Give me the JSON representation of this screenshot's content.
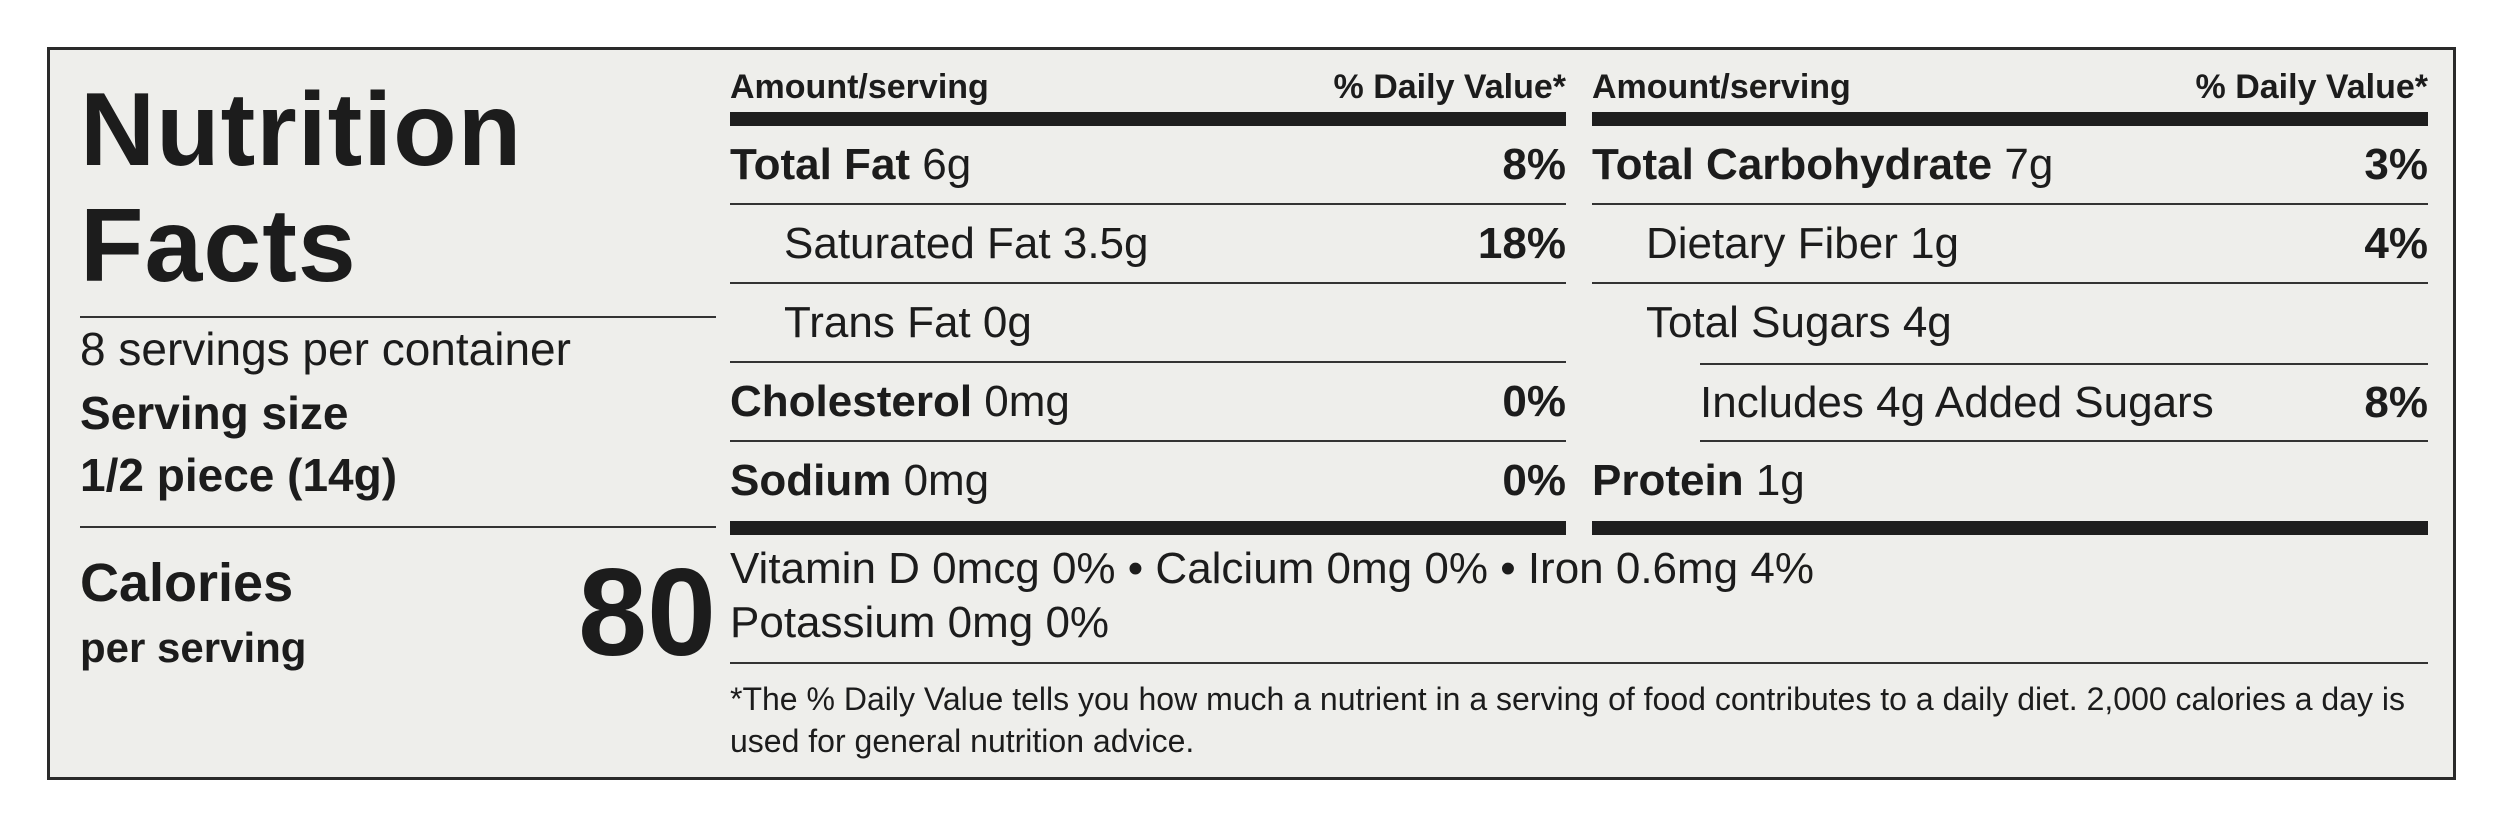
{
  "title_line1": "Nutrition",
  "title_line2": "Facts",
  "servings_per_container": "8 servings per container",
  "serving_size_label": "Serving size",
  "serving_size_value": "1/2 piece (14g)",
  "calories_label": "Calories",
  "calories_sublabel": "per serving",
  "calories_value": "80",
  "header_amount": "Amount/serving",
  "header_dv": "% Daily Value*",
  "left_rows": [
    {
      "name": "Total Fat",
      "amount": "6g",
      "dv": "8%"
    },
    {
      "name": "Saturated Fat",
      "amount": "3.5g",
      "dv": "18%"
    },
    {
      "name": "Trans Fat",
      "amount": "0g",
      "dv": ""
    },
    {
      "name": "Cholesterol",
      "amount": "0mg",
      "dv": "0%"
    },
    {
      "name": "Sodium",
      "amount": "0mg",
      "dv": "0%"
    }
  ],
  "right_rows": [
    {
      "name": "Total Carbohydrate",
      "amount": "7g",
      "dv": "3%"
    },
    {
      "name": "Dietary Fiber",
      "amount": "1g",
      "dv": "4%"
    },
    {
      "name": "Total Sugars",
      "amount": "4g",
      "dv": ""
    },
    {
      "name": "Includes 4g Added Sugars",
      "amount": "",
      "dv": "8%"
    },
    {
      "name": "Protein",
      "amount": "1g",
      "dv": ""
    }
  ],
  "vitamins_line1": "Vitamin D 0mcg 0%  •  Calcium 0mg 0%  •  Iron 0.6mg 4%",
  "vitamins_line2": "Potassium 0mg 0%",
  "footnote": "*The % Daily Value tells you how much a nutrient in a serving of food contributes to a daily diet. 2,000 calories a day is used for general nutrition advice."
}
